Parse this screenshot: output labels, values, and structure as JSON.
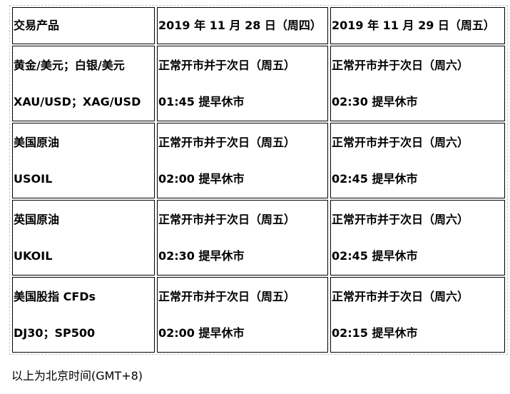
{
  "table": {
    "headers": [
      "交易产品",
      "2019 年 11 月 28 日（周四）",
      "2019 年 11 月 29 日（周五）"
    ],
    "rows": [
      {
        "product": [
          "黄金/美元；白银/美元",
          "XAU/USD；XAG/USD"
        ],
        "day1": [
          "正常开市并于次日（周五）",
          "01:45 提早休市"
        ],
        "day2": [
          "正常开市并于次日（周六）",
          "02:30 提早休市"
        ]
      },
      {
        "product": [
          "美国原油",
          "USOIL"
        ],
        "day1": [
          "正常开市并于次日（周五）",
          "02:00 提早休市"
        ],
        "day2": [
          "正常开市并于次日（周六）",
          "02:45 提早休市"
        ]
      },
      {
        "product": [
          "英国原油",
          "UKOIL"
        ],
        "day1": [
          "正常开市并于次日（周五）",
          "02:30 提早休市"
        ],
        "day2": [
          "正常开市并于次日（周六）",
          "02:45 提早休市"
        ]
      },
      {
        "product": [
          "美国股指 CFDs",
          "DJ30；SP500"
        ],
        "day1": [
          "正常开市并于次日（周五）",
          "02:00 提早休市"
        ],
        "day2": [
          "正常开市并于次日（周六）",
          "02:15 提早休市"
        ]
      }
    ]
  },
  "note": "以上为北京时间(GMT+8)"
}
